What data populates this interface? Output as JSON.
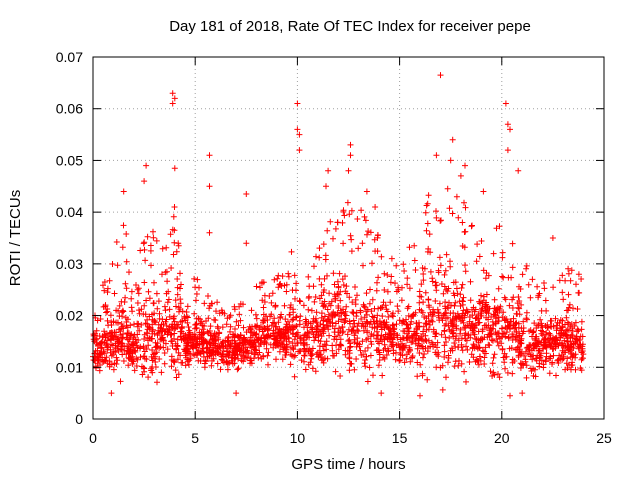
{
  "chart_data": {
    "type": "scatter",
    "title": "Day 181 of 2018, Rate Of TEC Index for receiver pepe",
    "xlabel": "GPS time / hours",
    "ylabel": "ROTI / TECUs",
    "xlim": [
      0,
      25
    ],
    "ylim": [
      0,
      0.07
    ],
    "x_ticks": [
      "0",
      "5",
      "10",
      "15",
      "20",
      "25"
    ],
    "y_ticks": [
      "0",
      "0.01",
      "0.02",
      "0.03",
      "0.04",
      "0.05",
      "0.06",
      "0.07"
    ],
    "grid": true,
    "marker": "+",
    "series": [
      {
        "name": "pepe",
        "color": "#ff0000",
        "envelope": {
          "hours": [
            0,
            0.5,
            1,
            1.5,
            2,
            2.5,
            3,
            3.5,
            4,
            4.5,
            5,
            5.5,
            6,
            6.5,
            7,
            7.5,
            8,
            8.5,
            9,
            9.5,
            10,
            10.5,
            11,
            11.5,
            12,
            12.5,
            13,
            13.5,
            14,
            14.5,
            15,
            15.5,
            16,
            16.5,
            17,
            17.5,
            18,
            18.5,
            19,
            19.5,
            20,
            20.5,
            21,
            21.5,
            22,
            22.5,
            23,
            23.5,
            24
          ],
          "median": [
            0.014,
            0.013,
            0.015,
            0.016,
            0.014,
            0.015,
            0.015,
            0.016,
            0.017,
            0.014,
            0.015,
            0.014,
            0.014,
            0.013,
            0.013,
            0.014,
            0.015,
            0.016,
            0.016,
            0.016,
            0.016,
            0.015,
            0.016,
            0.018,
            0.018,
            0.018,
            0.017,
            0.017,
            0.016,
            0.016,
            0.015,
            0.016,
            0.017,
            0.018,
            0.018,
            0.018,
            0.018,
            0.017,
            0.017,
            0.016,
            0.016,
            0.016,
            0.015,
            0.014,
            0.014,
            0.014,
            0.015,
            0.014,
            0.014
          ],
          "spread": [
            0.005,
            0.006,
            0.008,
            0.01,
            0.007,
            0.009,
            0.01,
            0.009,
            0.011,
            0.006,
            0.006,
            0.005,
            0.004,
            0.004,
            0.004,
            0.005,
            0.005,
            0.006,
            0.006,
            0.007,
            0.008,
            0.007,
            0.008,
            0.01,
            0.011,
            0.012,
            0.011,
            0.01,
            0.009,
            0.008,
            0.006,
            0.008,
            0.01,
            0.012,
            0.013,
            0.012,
            0.012,
            0.011,
            0.01,
            0.01,
            0.01,
            0.009,
            0.007,
            0.007,
            0.006,
            0.006,
            0.007,
            0.007,
            0.006
          ]
        },
        "outliers": [
          [
            1.5,
            0.044
          ],
          [
            2.6,
            0.049
          ],
          [
            2.5,
            0.046
          ],
          [
            3.9,
            0.063
          ],
          [
            3.9,
            0.061
          ],
          [
            4.0,
            0.062
          ],
          [
            4.0,
            0.0485
          ],
          [
            5.7,
            0.051
          ],
          [
            5.7,
            0.045
          ],
          [
            5.7,
            0.036
          ],
          [
            7.5,
            0.0435
          ],
          [
            7.5,
            0.034
          ],
          [
            10.0,
            0.061
          ],
          [
            10.0,
            0.056
          ],
          [
            10.1,
            0.055
          ],
          [
            10.1,
            0.052
          ],
          [
            11.5,
            0.048
          ],
          [
            11.4,
            0.045
          ],
          [
            12.6,
            0.053
          ],
          [
            12.6,
            0.051
          ],
          [
            12.5,
            0.048
          ],
          [
            13.4,
            0.044
          ],
          [
            13.8,
            0.041
          ],
          [
            16.8,
            0.051
          ],
          [
            17.0,
            0.0665
          ],
          [
            17.6,
            0.054
          ],
          [
            17.5,
            0.05
          ],
          [
            18.2,
            0.049
          ],
          [
            18.0,
            0.047
          ],
          [
            20.2,
            0.061
          ],
          [
            20.3,
            0.057
          ],
          [
            20.4,
            0.056
          ],
          [
            20.3,
            0.052
          ],
          [
            20.8,
            0.048
          ],
          [
            19.1,
            0.044
          ],
          [
            22.5,
            0.035
          ],
          [
            16.0,
            0.0045
          ],
          [
            20.4,
            0.0045
          ],
          [
            21.0,
            0.005
          ],
          [
            7.0,
            0.005
          ],
          [
            0.9,
            0.005
          ],
          [
            14.1,
            0.005
          ]
        ]
      }
    ]
  }
}
